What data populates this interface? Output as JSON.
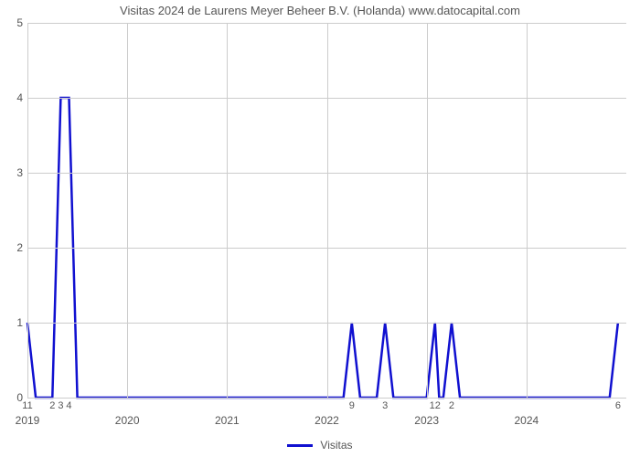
{
  "chart": {
    "type": "line",
    "title": "Visitas 2024 de Laurens Meyer Beheer B.V. (Holanda) www.datocapital.com",
    "title_fontsize": 13,
    "title_color": "#555555",
    "background_color": "#ffffff",
    "line_color": "#1010d0",
    "line_width": 2.5,
    "grid_color": "#cccccc",
    "axis_color": "#999999",
    "tick_color": "#555555",
    "tick_fontsize": 12,
    "ylim": [
      0,
      5
    ],
    "yticks": [
      0,
      1,
      2,
      3,
      4,
      5
    ],
    "x_range_months": 72,
    "year_ticks": [
      {
        "pos_months": 0,
        "label": "2019"
      },
      {
        "pos_months": 12,
        "label": "2020"
      },
      {
        "pos_months": 24,
        "label": "2021"
      },
      {
        "pos_months": 36,
        "label": "2022"
      },
      {
        "pos_months": 48,
        "label": "2023"
      },
      {
        "pos_months": 60,
        "label": "2024"
      }
    ],
    "point_labels": [
      {
        "pos_months": 0,
        "label": "11"
      },
      {
        "pos_months": 3,
        "label": "2"
      },
      {
        "pos_months": 4,
        "label": "3"
      },
      {
        "pos_months": 5,
        "label": "4"
      },
      {
        "pos_months": 39,
        "label": "9"
      },
      {
        "pos_months": 43,
        "label": "3"
      },
      {
        "pos_months": 49,
        "label": "12"
      },
      {
        "pos_months": 51,
        "label": "2"
      },
      {
        "pos_months": 71,
        "label": "6"
      }
    ],
    "data_points": [
      {
        "x": 0,
        "y": 1
      },
      {
        "x": 1,
        "y": 0
      },
      {
        "x": 2,
        "y": 0
      },
      {
        "x": 3,
        "y": 0
      },
      {
        "x": 4,
        "y": 4
      },
      {
        "x": 5,
        "y": 4
      },
      {
        "x": 6,
        "y": 0
      },
      {
        "x": 7,
        "y": 0
      },
      {
        "x": 38,
        "y": 0
      },
      {
        "x": 39,
        "y": 1
      },
      {
        "x": 40,
        "y": 0
      },
      {
        "x": 42,
        "y": 0
      },
      {
        "x": 43,
        "y": 1
      },
      {
        "x": 44,
        "y": 0
      },
      {
        "x": 48,
        "y": 0
      },
      {
        "x": 49,
        "y": 1
      },
      {
        "x": 49.5,
        "y": 0
      },
      {
        "x": 50,
        "y": 0
      },
      {
        "x": 51,
        "y": 1
      },
      {
        "x": 52,
        "y": 0
      },
      {
        "x": 70,
        "y": 0
      },
      {
        "x": 71,
        "y": 1
      }
    ],
    "legend": {
      "label": "Visitas",
      "color": "#1010d0"
    }
  }
}
